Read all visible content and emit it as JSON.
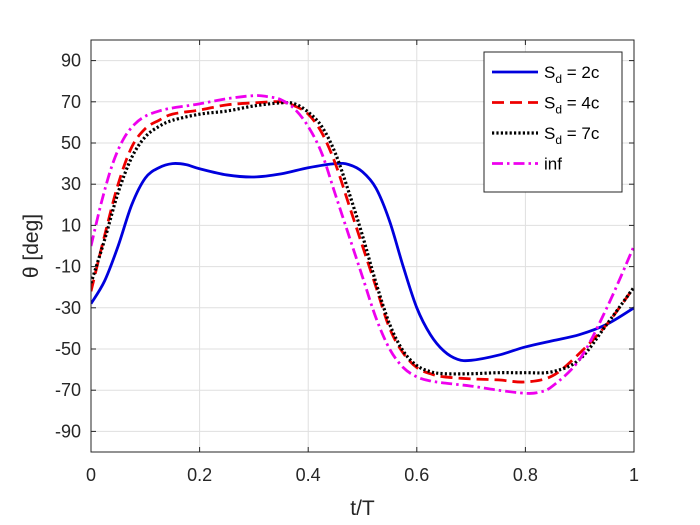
{
  "chart_data": {
    "type": "line",
    "title": "",
    "xlabel": "t/T",
    "ylabel": "θ [deg]",
    "xlim": [
      0,
      1
    ],
    "ylim": [
      -100,
      100
    ],
    "xticks": [
      0,
      0.2,
      0.4,
      0.6,
      0.8,
      1
    ],
    "xtick_labels": [
      "0",
      "0.2",
      "0.4",
      "0.6",
      "0.8",
      "1"
    ],
    "yticks": [
      90,
      70,
      50,
      30,
      10,
      -10,
      -30,
      -50,
      -70,
      -90
    ],
    "ytick_labels": [
      "90",
      "70",
      "50",
      "30",
      "10",
      "-10",
      "-30",
      "-50",
      "-70",
      "-90"
    ],
    "grid": true,
    "legend_position": "top-right",
    "series": [
      {
        "name": "S_d = 2c",
        "legend_main": "S",
        "legend_sub": "d",
        "legend_rest": " = 2c",
        "color": "#0000dd",
        "style": "solid",
        "x": [
          0,
          0.025,
          0.05,
          0.075,
          0.1,
          0.125,
          0.15,
          0.175,
          0.2,
          0.25,
          0.3,
          0.35,
          0.4,
          0.45,
          0.475,
          0.5,
          0.525,
          0.55,
          0.575,
          0.6,
          0.625,
          0.65,
          0.675,
          0.7,
          0.75,
          0.8,
          0.85,
          0.9,
          0.95,
          1.0
        ],
        "y": [
          -28,
          -17,
          0,
          20,
          33,
          38,
          40,
          39.5,
          37.5,
          34.5,
          33.5,
          35,
          38,
          40,
          39.5,
          36,
          28,
          12,
          -10,
          -30,
          -43,
          -51,
          -55,
          -55.5,
          -53,
          -49,
          -46,
          -43,
          -38,
          -30
        ]
      },
      {
        "name": "S_d = 4c",
        "legend_main": "S",
        "legend_sub": "d",
        "legend_rest": " = 4c",
        "color": "#ee0000",
        "style": "dashed",
        "x": [
          0,
          0.025,
          0.05,
          0.075,
          0.1,
          0.125,
          0.15,
          0.2,
          0.25,
          0.3,
          0.35,
          0.375,
          0.4,
          0.425,
          0.45,
          0.475,
          0.5,
          0.525,
          0.55,
          0.575,
          0.6,
          0.625,
          0.65,
          0.7,
          0.75,
          0.8,
          0.85,
          0.9,
          0.95,
          1.0
        ],
        "y": [
          -22,
          5,
          30,
          48,
          57,
          61,
          64,
          66,
          68.5,
          69.5,
          70,
          68,
          64,
          55,
          40,
          20,
          0,
          -20,
          -40,
          -52,
          -59,
          -62,
          -63.5,
          -64.5,
          -65,
          -66,
          -63,
          -52,
          -38,
          -20
        ]
      },
      {
        "name": "S_d = 7c",
        "legend_main": "S",
        "legend_sub": "d",
        "legend_rest": " = 7c",
        "color": "#000000",
        "style": "dotted",
        "x": [
          0,
          0.025,
          0.05,
          0.075,
          0.1,
          0.125,
          0.15,
          0.2,
          0.25,
          0.3,
          0.35,
          0.375,
          0.4,
          0.425,
          0.45,
          0.475,
          0.5,
          0.525,
          0.55,
          0.575,
          0.6,
          0.625,
          0.65,
          0.7,
          0.75,
          0.8,
          0.85,
          0.9,
          0.95,
          1.0
        ],
        "y": [
          -18,
          3,
          26,
          43,
          53,
          58,
          61,
          64,
          65.5,
          68,
          69.5,
          69,
          65,
          58,
          45,
          26,
          5,
          -18,
          -38,
          -51,
          -58,
          -61,
          -62,
          -62,
          -61.5,
          -61.5,
          -61,
          -55,
          -38,
          -20
        ]
      },
      {
        "name": "inf",
        "legend_main": "inf",
        "legend_sub": "",
        "legend_rest": "",
        "color": "#ee00ee",
        "style": "dashdot",
        "x": [
          0,
          0.02,
          0.04,
          0.06,
          0.08,
          0.1,
          0.125,
          0.15,
          0.2,
          0.25,
          0.3,
          0.325,
          0.35,
          0.375,
          0.4,
          0.425,
          0.45,
          0.475,
          0.5,
          0.525,
          0.55,
          0.575,
          0.6,
          0.625,
          0.65,
          0.7,
          0.75,
          0.8,
          0.825,
          0.85,
          0.9,
          0.95,
          1.0
        ],
        "y": [
          0,
          22,
          40,
          52,
          59,
          63,
          65.5,
          67,
          69,
          71.5,
          73,
          72.5,
          71,
          66.5,
          58,
          45,
          25,
          5,
          -15,
          -35,
          -50,
          -59,
          -63.5,
          -65.5,
          -66.5,
          -68,
          -70,
          -71.5,
          -71,
          -68,
          -55,
          -30,
          0
        ]
      }
    ]
  }
}
